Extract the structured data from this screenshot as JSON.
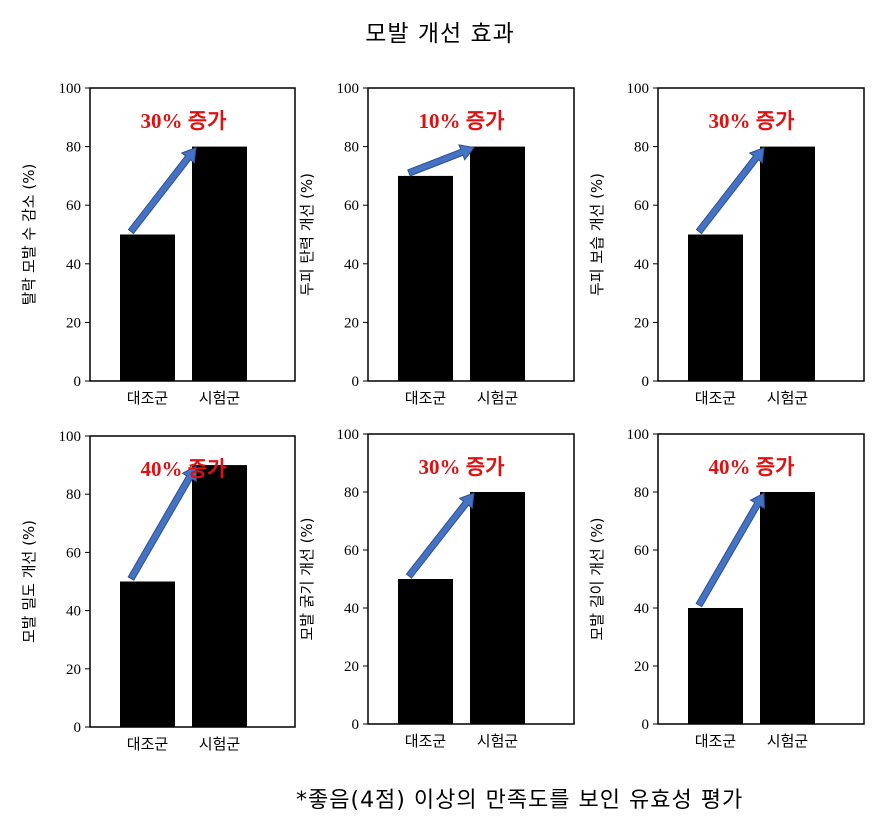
{
  "title": "모발 개선 효과",
  "footnote": "*좋음(4점) 이상의 만족도를 보인 유효성 평가",
  "colors": {
    "bar": "#000000",
    "arrow_fill": "#4472c4",
    "arrow_stroke": "#2f4f8f",
    "annotation": "#e01010"
  },
  "chart_data": [
    {
      "type": "bar",
      "ylabel": "탈락 모발 수 감소 (%)",
      "categories": [
        "대조군",
        "시험군"
      ],
      "values": [
        50,
        80
      ],
      "ylim": [
        0,
        100
      ],
      "yticks": [
        0,
        20,
        40,
        60,
        80,
        100
      ],
      "annotation": "30% 증가"
    },
    {
      "type": "bar",
      "ylabel": "두피 탄력 개선 (%)",
      "categories": [
        "대조군",
        "시험군"
      ],
      "values": [
        70,
        80
      ],
      "ylim": [
        0,
        100
      ],
      "yticks": [
        0,
        20,
        40,
        60,
        80,
        100
      ],
      "annotation": "10% 증가"
    },
    {
      "type": "bar",
      "ylabel": "두피 보습 개선 (%)",
      "categories": [
        "대조군",
        "시험군"
      ],
      "values": [
        50,
        80
      ],
      "ylim": [
        0,
        100
      ],
      "yticks": [
        0,
        20,
        40,
        60,
        80,
        100
      ],
      "annotation": "30% 증가"
    },
    {
      "type": "bar",
      "ylabel": "모발 밀도 개선 (%)",
      "categories": [
        "대조군",
        "시험군"
      ],
      "values": [
        50,
        90
      ],
      "ylim": [
        0,
        100
      ],
      "yticks": [
        0,
        20,
        40,
        60,
        80,
        100
      ],
      "annotation": "40% 증가"
    },
    {
      "type": "bar",
      "ylabel": "모발 굵기 개선 (%)",
      "categories": [
        "대조군",
        "시험군"
      ],
      "values": [
        50,
        80
      ],
      "ylim": [
        0,
        100
      ],
      "yticks": [
        0,
        20,
        40,
        60,
        80,
        100
      ],
      "annotation": "30% 증가"
    },
    {
      "type": "bar",
      "ylabel": "모발 길이 개선 (%)",
      "categories": [
        "대조군",
        "시험군"
      ],
      "values": [
        40,
        80
      ],
      "ylim": [
        0,
        100
      ],
      "yticks": [
        0,
        20,
        40,
        60,
        80,
        100
      ],
      "annotation": "40% 증가"
    }
  ]
}
